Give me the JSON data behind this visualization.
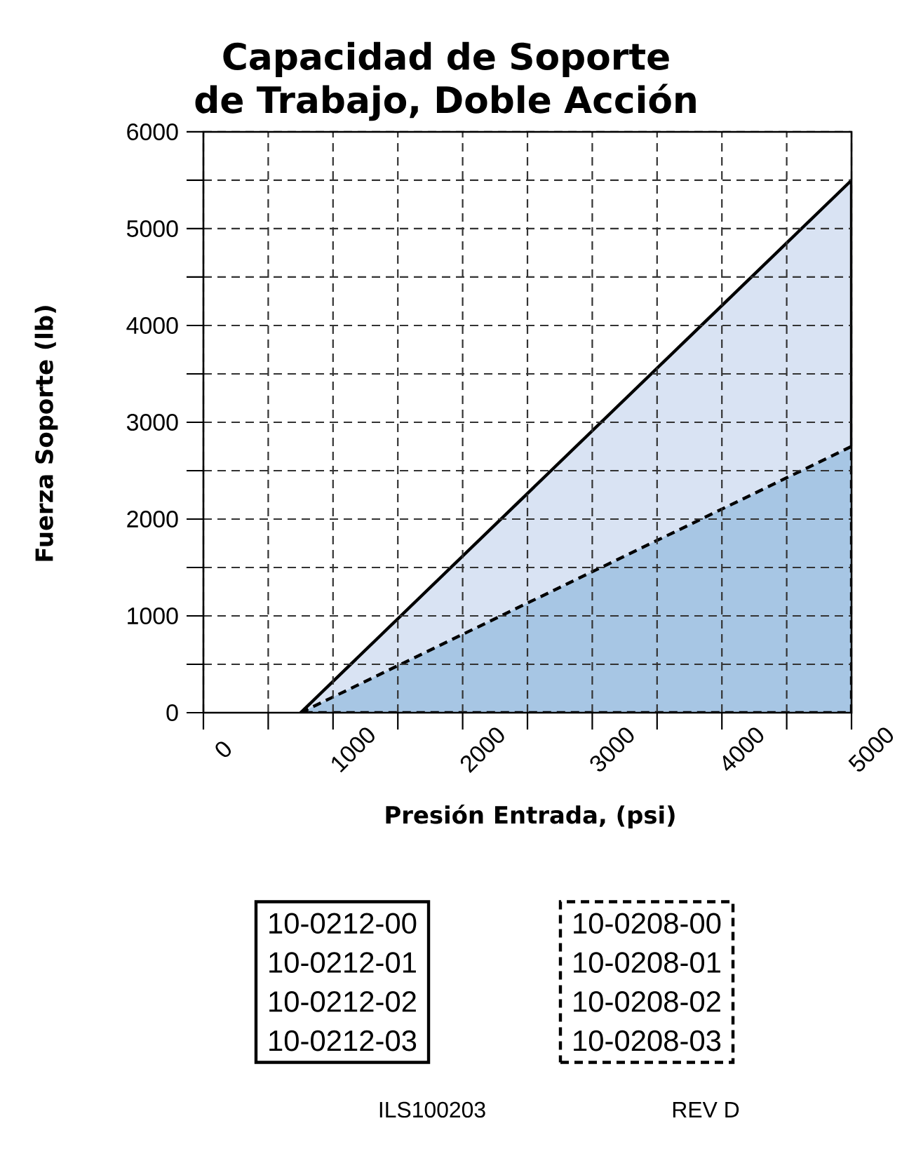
{
  "chart_data": {
    "type": "area",
    "title": "Capacidad de Soporte de Trabajo, Doble Acción",
    "xlabel": "Presión Entrada, (psi)",
    "ylabel": "Fuerza Soporte (lb)",
    "xlim": [
      0,
      5000
    ],
    "ylim": [
      0,
      6000
    ],
    "xticks": [
      0,
      {
        "value": 500,
        "label": null
      },
      1000,
      {
        "value": 1500,
        "label": null
      },
      2000,
      {
        "value": 2500,
        "label": null
      },
      3000,
      {
        "value": 3500,
        "label": null
      },
      4000,
      {
        "value": 4500,
        "label": null
      },
      5000
    ],
    "yticks": [
      0,
      {
        "value": 500,
        "label": null
      },
      1000,
      {
        "value": 1500,
        "label": null
      },
      2000,
      {
        "value": 2500,
        "label": null
      },
      3000,
      {
        "value": 3500,
        "label": null
      },
      4000,
      {
        "value": 4500,
        "label": null
      },
      5000,
      {
        "value": 5500,
        "label": null
      },
      6000
    ],
    "grid": true,
    "x": [
      750,
      5000
    ],
    "series": [
      {
        "color": "#d9e3f3",
        "line_style": "solid",
        "values": [
          0,
          5500
        ]
      },
      {
        "color": "#a7c6e4",
        "line_style": "dashed",
        "values": [
          0,
          2750
        ]
      }
    ],
    "annotations": [
      "10-0212-00",
      "10-0212-01",
      "10-0212-02",
      "10-0212-03",
      "10-0208-00",
      "10-0208-01",
      "10-0208-02",
      "10-0208-03",
      "ILS100203",
      "REV D"
    ]
  }
}
